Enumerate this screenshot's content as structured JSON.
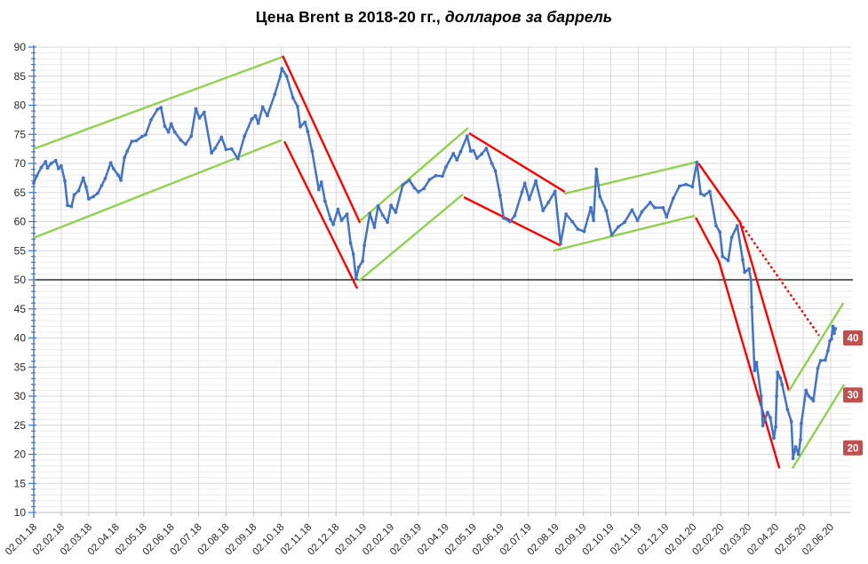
{
  "chart_data": {
    "type": "line",
    "title_main": "Цена Brent в 2018-20 гг.,",
    "title_italic": "долларов за баррель",
    "y_axis": {
      "min": 10,
      "max": 90,
      "major_step": 5,
      "minor_step": 1
    },
    "x_labels": [
      "02.01.18",
      "02.02.18",
      "02.03.18",
      "02.04.18",
      "02.05.18",
      "02.06.18",
      "02.07.18",
      "02.08.18",
      "02.09.18",
      "02.10.18",
      "02.11.18",
      "02.12.18",
      "02.01.19",
      "02.02.19",
      "02.03.19",
      "02.04.19",
      "02.05.19",
      "02.06.19",
      "02.07.19",
      "02.08.19",
      "02.09.19",
      "02.10.19",
      "02.11.19",
      "02.12.19",
      "02.01.20",
      "02.02.20",
      "02.03.20",
      "02.04.20",
      "02.05.20",
      "02.06.20"
    ],
    "reference_line": {
      "value": 50,
      "color": "#000000"
    },
    "price_series": {
      "name": "Brent",
      "color": "#4472C4",
      "points": [
        [
          0,
          66.6
        ],
        [
          0.1,
          67.8
        ],
        [
          0.27,
          69.3
        ],
        [
          0.43,
          70.3
        ],
        [
          0.5,
          69.2
        ],
        [
          0.63,
          70.0
        ],
        [
          0.8,
          70.5
        ],
        [
          0.9,
          69.1
        ],
        [
          1.0,
          69.6
        ],
        [
          1.13,
          67.0
        ],
        [
          1.23,
          62.8
        ],
        [
          1.37,
          62.6
        ],
        [
          1.47,
          64.6
        ],
        [
          1.63,
          65.3
        ],
        [
          1.8,
          67.5
        ],
        [
          1.9,
          66.0
        ],
        [
          2.0,
          63.9
        ],
        [
          2.17,
          64.3
        ],
        [
          2.33,
          64.9
        ],
        [
          2.47,
          66.2
        ],
        [
          2.6,
          67.4
        ],
        [
          2.8,
          70.1
        ],
        [
          2.9,
          69.1
        ],
        [
          3.07,
          68.0
        ],
        [
          3.17,
          67.1
        ],
        [
          3.3,
          71.0
        ],
        [
          3.4,
          72.1
        ],
        [
          3.57,
          73.8
        ],
        [
          3.73,
          73.9
        ],
        [
          3.93,
          74.6
        ],
        [
          4.07,
          74.9
        ],
        [
          4.27,
          77.5
        ],
        [
          4.5,
          79.3
        ],
        [
          4.63,
          79.6
        ],
        [
          4.77,
          76.4
        ],
        [
          4.9,
          75.4
        ],
        [
          5.0,
          76.8
        ],
        [
          5.13,
          75.4
        ],
        [
          5.35,
          74.0
        ],
        [
          5.53,
          73.3
        ],
        [
          5.73,
          74.7
        ],
        [
          5.9,
          79.4
        ],
        [
          6.03,
          77.8
        ],
        [
          6.2,
          78.8
        ],
        [
          6.47,
          71.8
        ],
        [
          6.6,
          72.6
        ],
        [
          6.83,
          74.5
        ],
        [
          7.0,
          72.4
        ],
        [
          7.2,
          72.5
        ],
        [
          7.43,
          70.8
        ],
        [
          7.67,
          74.7
        ],
        [
          7.93,
          77.6
        ],
        [
          8.07,
          78.2
        ],
        [
          8.17,
          76.9
        ],
        [
          8.33,
          79.7
        ],
        [
          8.5,
          78.2
        ],
        [
          8.77,
          81.9
        ],
        [
          8.97,
          85.0
        ],
        [
          9.03,
          86.3
        ],
        [
          9.2,
          85.0
        ],
        [
          9.43,
          81.3
        ],
        [
          9.6,
          79.8
        ],
        [
          9.7,
          76.3
        ],
        [
          9.87,
          77.1
        ],
        [
          9.97,
          75.5
        ],
        [
          10.13,
          72.1
        ],
        [
          10.37,
          65.5
        ],
        [
          10.47,
          66.8
        ],
        [
          10.6,
          63.5
        ],
        [
          10.8,
          60.4
        ],
        [
          10.9,
          59.5
        ],
        [
          11.07,
          62.1
        ],
        [
          11.2,
          60.2
        ],
        [
          11.4,
          61.3
        ],
        [
          11.53,
          56.3
        ],
        [
          11.63,
          54.4
        ],
        [
          11.73,
          50.2
        ],
        [
          11.83,
          52.2
        ],
        [
          11.97,
          53.2
        ],
        [
          12.03,
          55.9
        ],
        [
          12.23,
          61.4
        ],
        [
          12.4,
          59.0
        ],
        [
          12.53,
          62.7
        ],
        [
          12.7,
          61.1
        ],
        [
          12.87,
          59.9
        ],
        [
          13.0,
          62.8
        ],
        [
          13.17,
          61.6
        ],
        [
          13.43,
          66.3
        ],
        [
          13.67,
          67.1
        ],
        [
          13.85,
          65.8
        ],
        [
          14.0,
          65.1
        ],
        [
          14.2,
          65.7
        ],
        [
          14.4,
          67.2
        ],
        [
          14.63,
          67.9
        ],
        [
          14.87,
          67.8
        ],
        [
          15.0,
          69.4
        ],
        [
          15.27,
          71.7
        ],
        [
          15.4,
          70.6
        ],
        [
          15.53,
          72.0
        ],
        [
          15.77,
          74.7
        ],
        [
          15.9,
          72.1
        ],
        [
          16.0,
          72.2
        ],
        [
          16.13,
          70.9
        ],
        [
          16.3,
          71.6
        ],
        [
          16.47,
          72.6
        ],
        [
          16.67,
          70.0
        ],
        [
          16.8,
          68.7
        ],
        [
          16.97,
          64.5
        ],
        [
          17.1,
          60.6
        ],
        [
          17.33,
          60.0
        ],
        [
          17.5,
          61.0
        ],
        [
          17.77,
          65.1
        ],
        [
          17.87,
          66.6
        ],
        [
          18.03,
          63.8
        ],
        [
          18.27,
          67.0
        ],
        [
          18.53,
          61.9
        ],
        [
          18.73,
          63.3
        ],
        [
          18.97,
          65.2
        ],
        [
          19.17,
          56.2
        ],
        [
          19.37,
          61.3
        ],
        [
          19.6,
          60.0
        ],
        [
          19.8,
          58.7
        ],
        [
          20.03,
          58.3
        ],
        [
          20.27,
          62.4
        ],
        [
          20.37,
          60.2
        ],
        [
          20.47,
          69.0
        ],
        [
          20.6,
          64.3
        ],
        [
          20.83,
          61.9
        ],
        [
          21.03,
          57.7
        ],
        [
          21.27,
          59.1
        ],
        [
          21.5,
          59.9
        ],
        [
          21.77,
          62.0
        ],
        [
          21.97,
          60.2
        ],
        [
          22.13,
          61.7
        ],
        [
          22.43,
          63.3
        ],
        [
          22.6,
          62.4
        ],
        [
          22.9,
          62.4
        ],
        [
          23.03,
          60.8
        ],
        [
          23.27,
          64.0
        ],
        [
          23.5,
          66.1
        ],
        [
          23.73,
          66.4
        ],
        [
          23.97,
          66.0
        ],
        [
          24.13,
          70.2
        ],
        [
          24.27,
          64.8
        ],
        [
          24.4,
          64.5
        ],
        [
          24.6,
          65.2
        ],
        [
          24.83,
          59.3
        ],
        [
          24.97,
          58.2
        ],
        [
          25.07,
          54.0
        ],
        [
          25.27,
          53.3
        ],
        [
          25.4,
          57.3
        ],
        [
          25.6,
          59.3
        ],
        [
          25.8,
          53.4
        ],
        [
          25.87,
          51.3
        ],
        [
          26.03,
          51.9
        ],
        [
          26.1,
          50.0
        ],
        [
          26.13,
          45.3
        ],
        [
          26.23,
          34.4
        ],
        [
          26.3,
          35.8
        ],
        [
          26.47,
          30.0
        ],
        [
          26.53,
          24.9
        ],
        [
          26.7,
          27.2
        ],
        [
          26.8,
          26.3
        ],
        [
          26.93,
          22.8
        ],
        [
          27.0,
          24.7
        ],
        [
          27.03,
          30.0
        ],
        [
          27.07,
          34.1
        ],
        [
          27.17,
          33.1
        ],
        [
          27.23,
          32.0
        ],
        [
          27.43,
          27.7
        ],
        [
          27.57,
          25.6
        ],
        [
          27.63,
          19.3
        ],
        [
          27.67,
          20.4
        ],
        [
          27.73,
          21.3
        ],
        [
          27.83,
          20.0
        ],
        [
          27.9,
          22.5
        ],
        [
          27.93,
          25.3
        ],
        [
          28.1,
          31.0
        ],
        [
          28.2,
          30.0
        ],
        [
          28.3,
          29.6
        ],
        [
          28.37,
          29.2
        ],
        [
          28.53,
          34.8
        ],
        [
          28.63,
          36.1
        ],
        [
          28.8,
          36.2
        ],
        [
          28.9,
          37.8
        ],
        [
          28.97,
          39.5
        ],
        [
          29.03,
          39.8
        ],
        [
          29.08,
          42.0
        ],
        [
          29.13,
          40.8
        ],
        [
          29.17,
          41.6
        ]
      ]
    },
    "trend_lines": [
      {
        "name": "uptrend-2018-upper",
        "color": "#92D050",
        "style": "solid",
        "points": [
          [
            0,
            72.5
          ],
          [
            9.05,
            88.3
          ]
        ]
      },
      {
        "name": "uptrend-2018-lower",
        "color": "#92D050",
        "style": "solid",
        "points": [
          [
            0,
            57.2
          ],
          [
            9.02,
            74.0
          ]
        ]
      },
      {
        "name": "downtrend-2018-upper",
        "color": "#FF0000",
        "style": "solid",
        "points": [
          [
            9.06,
            88.5
          ],
          [
            11.87,
            59.8
          ]
        ]
      },
      {
        "name": "downtrend-2018-lower",
        "color": "#FF0000",
        "style": "solid",
        "points": [
          [
            9.12,
            73.8
          ],
          [
            11.77,
            48.5
          ]
        ]
      },
      {
        "name": "uptrend-2019-upper",
        "color": "#92D050",
        "style": "solid",
        "points": [
          [
            11.87,
            60.1
          ],
          [
            15.81,
            76.1
          ]
        ]
      },
      {
        "name": "uptrend-2019-lower",
        "color": "#92D050",
        "style": "solid",
        "points": [
          [
            11.83,
            49.8
          ],
          [
            15.62,
            64.7
          ]
        ]
      },
      {
        "name": "downtrend-2019-upper",
        "color": "#FF0000",
        "style": "solid",
        "points": [
          [
            15.84,
            75.2
          ],
          [
            19.33,
            65.1
          ]
        ]
      },
      {
        "name": "downtrend-2019-lower",
        "color": "#FF0000",
        "style": "solid",
        "points": [
          [
            15.65,
            64.2
          ],
          [
            19.17,
            55.9
          ]
        ]
      },
      {
        "name": "uptrend-2019-20-upper",
        "color": "#92D050",
        "style": "solid",
        "points": [
          [
            19.3,
            64.8
          ],
          [
            24.09,
            70.2
          ]
        ]
      },
      {
        "name": "uptrend-2019-20-lower",
        "color": "#92D050",
        "style": "solid",
        "points": [
          [
            18.91,
            55.0
          ],
          [
            24.06,
            61.0
          ]
        ]
      },
      {
        "name": "crash-2020-upper",
        "color": "#FF0000",
        "style": "solid",
        "points": [
          [
            24.19,
            70.0
          ],
          [
            25.7,
            59.9
          ],
          [
            27.48,
            30.9
          ]
        ]
      },
      {
        "name": "crash-2020-lower",
        "color": "#FF0000",
        "style": "solid",
        "points": [
          [
            24.09,
            60.7
          ],
          [
            24.93,
            53.2
          ],
          [
            27.13,
            17.6
          ]
        ]
      },
      {
        "name": "projection-dotted",
        "color": "#FF0000",
        "style": "dotted",
        "points": [
          [
            25.7,
            59.9
          ],
          [
            28.58,
            40.4
          ]
        ]
      },
      {
        "name": "recovery-2020-upper",
        "color": "#92D050",
        "style": "solid",
        "points": [
          [
            27.48,
            30.9
          ],
          [
            29.46,
            46.0
          ]
        ]
      },
      {
        "name": "recovery-2020-lower",
        "color": "#92D050",
        "style": "solid",
        "points": [
          [
            27.61,
            17.6
          ],
          [
            29.49,
            32.0
          ]
        ]
      }
    ],
    "level_badges": {
      "bg_color": "#C0504D",
      "text_color": "#FFFFFF",
      "items": [
        {
          "label": "40",
          "value": 40.0
        },
        {
          "label": "30",
          "value": 30.2
        },
        {
          "label": "20",
          "value": 21.1
        }
      ]
    },
    "layout_hints": {
      "grid": "on",
      "legend": "none",
      "axis_color": "#4472C4",
      "x_axis_color": "#BFBFBF",
      "label_color": "#262626"
    }
  }
}
